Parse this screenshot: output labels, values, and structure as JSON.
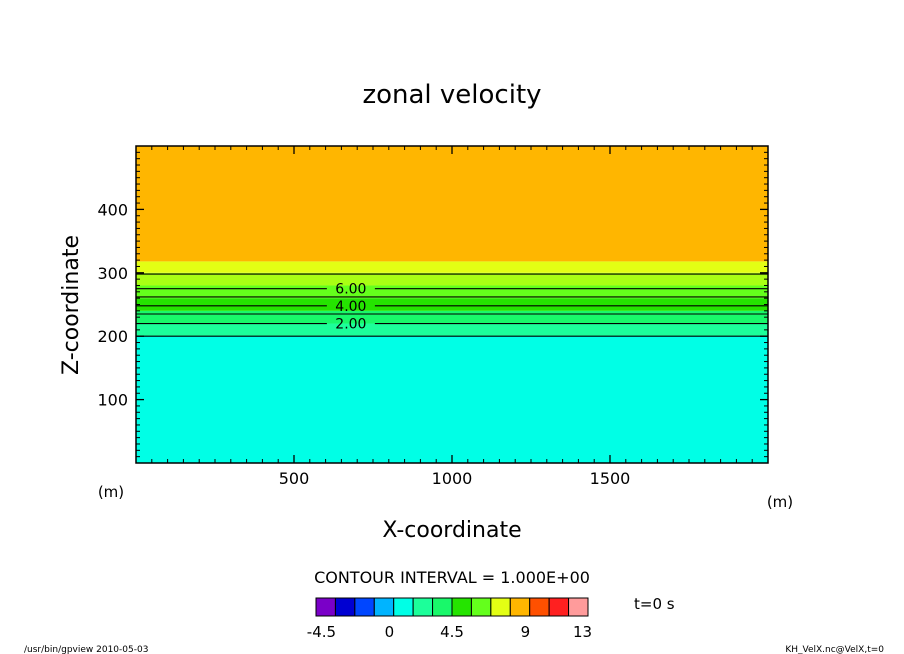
{
  "chart_data": {
    "type": "heatmap",
    "title": "zonal velocity",
    "xlabel": "X-coordinate",
    "ylabel": "Z-coordinate",
    "x_units": "(m)",
    "y_units": "(m)",
    "xlim": [
      0,
      2000
    ],
    "ylim": [
      0,
      500
    ],
    "x_ticks": [
      "500",
      "1000",
      "1500"
    ],
    "x_tick_values": [
      500,
      1000,
      1500
    ],
    "y_ticks": [
      "100",
      "200",
      "300",
      "400"
    ],
    "y_tick_values": [
      100,
      200,
      300,
      400
    ],
    "bands": [
      {
        "z_from": 0,
        "z_to": 200,
        "color": "#00ffe6"
      },
      {
        "z_from": 200,
        "z_to": 220,
        "color": "#1cff9a"
      },
      {
        "z_from": 220,
        "z_to": 240,
        "color": "#19f86a"
      },
      {
        "z_from": 240,
        "z_to": 260,
        "color": "#25e400"
      },
      {
        "z_from": 260,
        "z_to": 280,
        "color": "#64ff1c"
      },
      {
        "z_from": 280,
        "z_to": 300,
        "color": "#a9ff14"
      },
      {
        "z_from": 300,
        "z_to": 318,
        "color": "#e3ff14"
      },
      {
        "z_from": 318,
        "z_to": 500,
        "color": "#ffb600"
      }
    ],
    "contours": [
      {
        "z": 200,
        "label": ""
      },
      {
        "z": 220,
        "label": "2.00"
      },
      {
        "z": 235,
        "label": ""
      },
      {
        "z": 248,
        "label": "4.00"
      },
      {
        "z": 262,
        "label": ""
      },
      {
        "z": 275,
        "label": "6.00"
      },
      {
        "z": 298,
        "label": ""
      }
    ],
    "contour_label_x": 680,
    "contour_interval_text": "CONTOUR INTERVAL = 1.000E+00",
    "colorbar": {
      "colors": [
        "#7a00c8",
        "#0000d2",
        "#0046ff",
        "#00b4ff",
        "#00ffe6",
        "#1cff9a",
        "#19f86a",
        "#25e400",
        "#64ff1c",
        "#e3ff14",
        "#ffb600",
        "#ff5000",
        "#ff2020",
        "#ff9b9b"
      ],
      "tick_labels": [
        "-4.5",
        "0",
        "4.5",
        "9",
        "13"
      ],
      "tick_positions": [
        0.02,
        0.27,
        0.5,
        0.77,
        0.98
      ]
    },
    "time_label": "t=0 s"
  },
  "footer": {
    "left": "/usr/bin/gpview  2010-05-03",
    "right": "KH_VelX.nc@VelX,t=0"
  }
}
